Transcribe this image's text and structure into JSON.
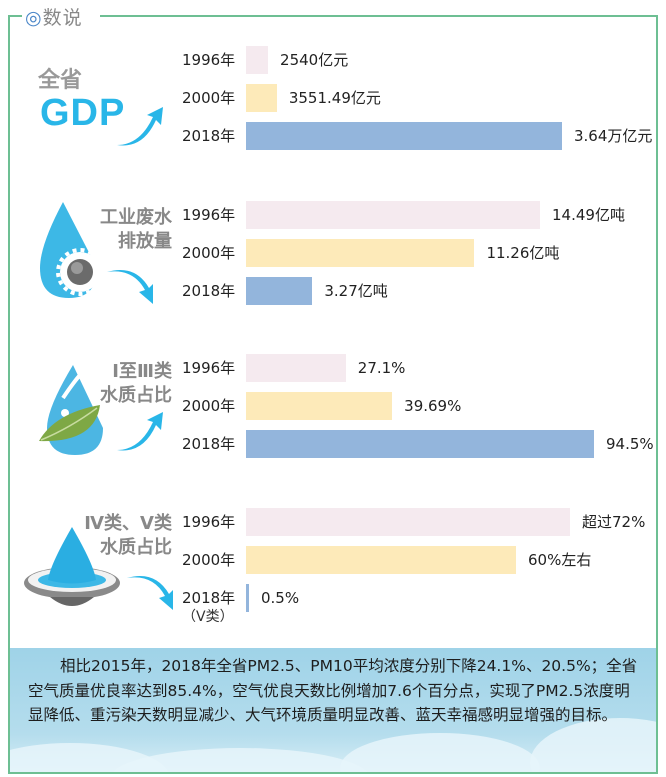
{
  "header": {
    "icon": "double-circle-icon",
    "symbol": "◎",
    "title": "数说"
  },
  "colors": {
    "frame": "#6dbf93",
    "bar_1996": "#f5eaef",
    "bar_2000": "#fdeab9",
    "bar_2018": "#93b5dc",
    "accent": "#29b6e8"
  },
  "sections": [
    {
      "label_top": "全省",
      "label_main": "GDP",
      "icon": "trend-up-arrow-icon"
    },
    {
      "label_line1": "工业废水",
      "label_line2": "排放量",
      "icon": "water-gear-icon"
    },
    {
      "label_line1": "Ⅰ至Ⅲ类",
      "label_line2": "水质占比",
      "icon": "water-leaf-icon"
    },
    {
      "label_line1": "Ⅳ类、Ⅴ类",
      "label_line2": "水质占比",
      "icon": "water-drop-bowl-icon",
      "sub_note": "（Ⅴ类）"
    }
  ],
  "chart_data": [
    {
      "type": "bar",
      "title": "全省GDP",
      "categories": [
        "1996年",
        "2000年",
        "2018年"
      ],
      "values": [
        2540,
        3551.49,
        36400
      ],
      "unit": "亿元",
      "labels": [
        "2540亿元",
        "3551.49亿元",
        "3.64万亿元"
      ]
    },
    {
      "type": "bar",
      "title": "工业废水排放量",
      "categories": [
        "1996年",
        "2000年",
        "2018年"
      ],
      "values": [
        14.49,
        11.26,
        3.27
      ],
      "unit": "亿吨",
      "labels": [
        "14.49亿吨",
        "11.26亿吨",
        "3.27亿吨"
      ]
    },
    {
      "type": "bar",
      "title": "Ⅰ至Ⅲ类水质占比",
      "categories": [
        "1996年",
        "2000年",
        "2018年"
      ],
      "values": [
        27.1,
        39.69,
        94.5
      ],
      "unit": "%",
      "labels": [
        "27.1%",
        "39.69%",
        "94.5%"
      ]
    },
    {
      "type": "bar",
      "title": "Ⅳ类、Ⅴ类水质占比",
      "categories": [
        "1996年",
        "2000年",
        "2018年"
      ],
      "values": [
        72,
        60,
        0.5
      ],
      "unit": "%",
      "labels": [
        "超过72%",
        "60%左右",
        "0.5%"
      ]
    }
  ],
  "footer": {
    "text": "相比2015年，2018年全省PM2.5、PM10平均浓度分别下降24.1%、20.5%；全省空气质量优良率达到85.4%，空气优良天数比例增加7.6个百分点，实现了PM2.5浓度明显降低、重污染天数明显减少、大气环境质量明显改善、蓝天幸福感明显增强的目标。"
  }
}
